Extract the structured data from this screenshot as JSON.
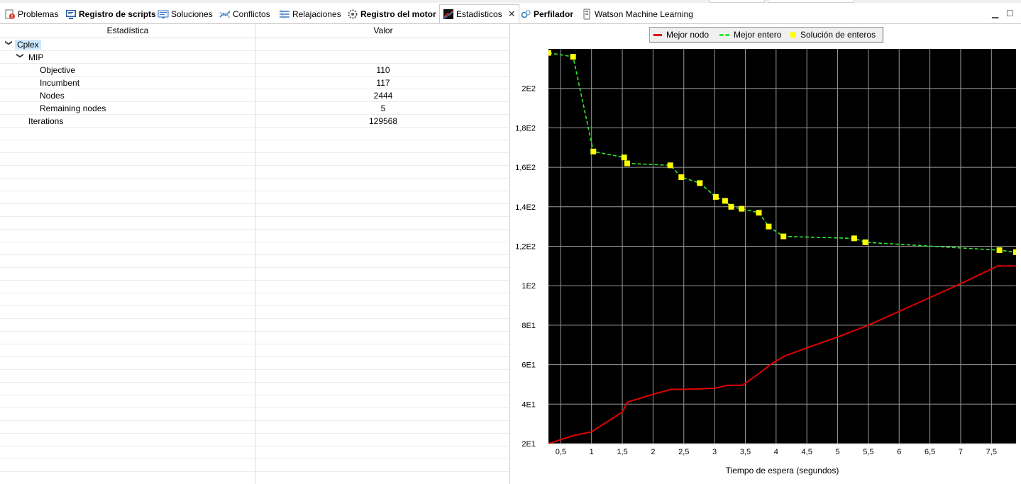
{
  "tabs": [
    {
      "label": "Problemas",
      "icon": "problems-icon",
      "bold": false,
      "active": false
    },
    {
      "label": "Registro de scripts",
      "icon": "script-log-icon",
      "bold": true,
      "active": false
    },
    {
      "label": "Soluciones",
      "icon": "solutions-icon",
      "bold": false,
      "active": false
    },
    {
      "label": "Conflictos",
      "icon": "conflicts-icon",
      "bold": false,
      "active": false
    },
    {
      "label": "Relajaciones",
      "icon": "relaxations-icon",
      "bold": false,
      "active": false
    },
    {
      "label": "Registro del motor",
      "icon": "engine-log-icon",
      "bold": true,
      "active": false
    },
    {
      "label": "Estadísticos",
      "icon": "statistics-icon",
      "bold": false,
      "active": true
    },
    {
      "label": "Perfilador",
      "icon": "profiler-icon",
      "bold": true,
      "active": false
    },
    {
      "label": "Watson Machine Learning",
      "icon": "watson-icon",
      "bold": false,
      "active": false
    }
  ],
  "window_controls": {
    "minimize": "minimize-icon",
    "maximize": "maximize-icon"
  },
  "table": {
    "headers": {
      "statistic": "Estadística",
      "value": "Valor"
    },
    "rows": [
      {
        "name": "Cplex",
        "value": "",
        "level": 0,
        "expanded": true,
        "selected": true
      },
      {
        "name": "MIP",
        "value": "",
        "level": 1,
        "expanded": true,
        "selected": false
      },
      {
        "name": "Objective",
        "value": "110",
        "level": 2,
        "expanded": null,
        "selected": false
      },
      {
        "name": "Incumbent",
        "value": "117",
        "level": 2,
        "expanded": null,
        "selected": false
      },
      {
        "name": "Nodes",
        "value": "2444",
        "level": 2,
        "expanded": null,
        "selected": false
      },
      {
        "name": "Remaining nodes",
        "value": "5",
        "level": 2,
        "expanded": null,
        "selected": false
      },
      {
        "name": "Iterations",
        "value": "129568",
        "level": 1,
        "expanded": null,
        "selected": false
      }
    ]
  },
  "chart_data": {
    "type": "line",
    "xlabel": "Tiempo de espera (segundos)",
    "ylabel": "",
    "xlim": [
      0.3,
      7.9
    ],
    "ylim": [
      20,
      220
    ],
    "xticks": [
      0.5,
      1,
      1.5,
      2,
      2.5,
      3,
      3.5,
      4,
      4.5,
      5,
      5.5,
      6,
      6.5,
      7,
      7.5
    ],
    "xtick_labels": [
      "0,5",
      "1",
      "1,5",
      "2",
      "2,5",
      "3",
      "3,5",
      "4",
      "4,5",
      "5",
      "5,5",
      "6",
      "6,5",
      "7",
      "7,5"
    ],
    "yticks": [
      20,
      40,
      60,
      80,
      100,
      120,
      140,
      160,
      180,
      200
    ],
    "ytick_labels": [
      "2E1",
      "4E1",
      "6E1",
      "8E1",
      "1E2",
      "1,2E2",
      "1,4E2",
      "1,6E2",
      "1,8E2",
      "2E2"
    ],
    "grid": true,
    "background": "#000000",
    "legend_position": "top",
    "series": [
      {
        "name": "Mejor nodo",
        "style": "solid",
        "color": "#e00000",
        "x": [
          0.3,
          0.7,
          1.0,
          1.3,
          1.5,
          1.58,
          2.0,
          2.3,
          2.5,
          3.0,
          3.2,
          3.45,
          3.7,
          3.95,
          4.15,
          4.5,
          5.0,
          5.5,
          6.0,
          6.5,
          7.0,
          7.6,
          7.9
        ],
        "y": [
          20,
          24,
          26,
          32,
          36,
          41,
          45,
          47.5,
          47.5,
          48,
          49.5,
          49.5,
          55,
          61,
          64.5,
          68.5,
          74,
          80,
          87,
          94,
          101,
          110,
          110
        ]
      },
      {
        "name": "Mejor entero",
        "style": "dashed",
        "color": "#2ee82e",
        "x": [
          0.3,
          0.7,
          1.03,
          1.53,
          1.58,
          2.28,
          2.46,
          2.76,
          3.02,
          3.17,
          3.27,
          3.44,
          3.72,
          3.88,
          4.12,
          5.27,
          5.45,
          7.63,
          7.9
        ],
        "y": [
          218,
          216,
          168,
          165,
          162,
          161,
          155,
          152,
          145,
          143,
          140,
          139,
          137,
          130,
          125,
          124,
          122,
          118,
          117
        ]
      },
      {
        "name": "Solución de enteros",
        "style": "markers",
        "color": "#ffff00",
        "x": [
          0.3,
          0.7,
          1.03,
          1.53,
          1.58,
          2.28,
          2.46,
          2.76,
          3.02,
          3.17,
          3.27,
          3.44,
          3.72,
          3.88,
          4.12,
          5.27,
          5.45,
          7.63,
          7.9
        ],
        "y": [
          218,
          216,
          168,
          165,
          162,
          161,
          155,
          152,
          145,
          143,
          140,
          139,
          137,
          130,
          125,
          124,
          122,
          118,
          117
        ]
      }
    ]
  }
}
